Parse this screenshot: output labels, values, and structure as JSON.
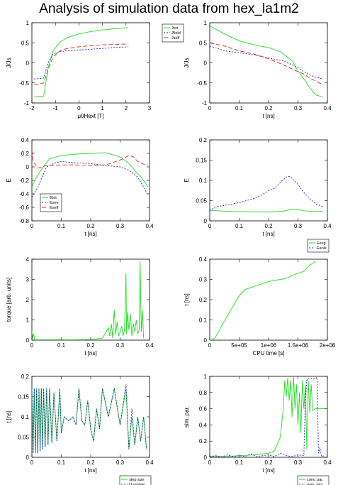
{
  "title": "Analysis of simulation data from hex_la1m2",
  "colors": {
    "green": "#22dd22",
    "blue": "#2222cc",
    "red": "#dd2222",
    "axis": "#000000"
  },
  "chart_data": [
    {
      "id": "p1",
      "type": "line",
      "xlabel": "μ0Hext [T]",
      "ylabel": "J/Js",
      "xlim": [
        -2,
        3
      ],
      "ylim": [
        -1,
        1
      ],
      "xticks": [
        "-2",
        "-1",
        "0",
        "1",
        "2",
        "3"
      ],
      "yticks": [
        "-1",
        "-0.5",
        "0",
        "0.5",
        "1"
      ],
      "legend_position": "outside-top-right",
      "series": [
        {
          "name": "Jtot",
          "color": "#22dd22",
          "dash": "",
          "x": [
            -1.9,
            -1.5,
            -1.3,
            -1.1,
            -0.8,
            -0.5,
            0,
            0.5,
            1,
            1.5,
            2.1
          ],
          "y": [
            -0.85,
            -0.83,
            -0.1,
            0.3,
            0.52,
            0.63,
            0.72,
            0.78,
            0.82,
            0.85,
            0.88
          ]
        },
        {
          "name": "Jfield",
          "color": "#2222cc",
          "dash": "2,2",
          "x": [
            -1.9,
            -1.5,
            -1.3,
            -1.1,
            -0.8,
            -0.5,
            0,
            0.5,
            1,
            1.5,
            2.1
          ],
          "y": [
            -0.4,
            -0.38,
            0.02,
            0.22,
            0.28,
            0.3,
            0.32,
            0.34,
            0.36,
            0.38,
            0.4
          ]
        },
        {
          "name": "Jself",
          "color": "#dd2222",
          "dash": "6,3",
          "x": [
            -1.9,
            -1.5,
            -1.3,
            -1.1,
            -0.8,
            -0.5,
            0,
            0.5,
            1,
            1.5,
            2.1
          ],
          "y": [
            -0.55,
            -0.5,
            -0.15,
            0.15,
            0.3,
            0.36,
            0.4,
            0.43,
            0.45,
            0.46,
            0.47
          ]
        }
      ]
    },
    {
      "id": "p2",
      "type": "line",
      "xlabel": "t [ns]",
      "ylabel": "J/Js",
      "xlim": [
        0,
        0.4
      ],
      "ylim": [
        -1,
        1
      ],
      "xticks": [
        "0",
        "0.1",
        "0.2",
        "0.3",
        "0.4"
      ],
      "yticks": [
        "-1",
        "-0.5",
        "0",
        "0.5",
        "1"
      ],
      "series": [
        {
          "name": "Jtot",
          "color": "#22dd22",
          "dash": "",
          "x": [
            0,
            0.05,
            0.1,
            0.15,
            0.2,
            0.24,
            0.28,
            0.3,
            0.32,
            0.34,
            0.36,
            0.385
          ],
          "y": [
            0.92,
            0.72,
            0.55,
            0.45,
            0.38,
            0.28,
            0.05,
            -0.2,
            -0.4,
            -0.62,
            -0.8,
            -0.85
          ]
        },
        {
          "name": "Jfield",
          "color": "#2222cc",
          "dash": "2,2",
          "x": [
            0,
            0.05,
            0.1,
            0.15,
            0.2,
            0.25,
            0.28,
            0.3,
            0.32,
            0.34,
            0.36,
            0.385
          ],
          "y": [
            0.42,
            0.3,
            0.25,
            0.2,
            0.12,
            0.05,
            -0.05,
            -0.12,
            -0.22,
            -0.3,
            -0.36,
            -0.4
          ]
        },
        {
          "name": "Jself",
          "color": "#dd2222",
          "dash": "6,3",
          "x": [
            0,
            0.05,
            0.1,
            0.15,
            0.2,
            0.25,
            0.28,
            0.3,
            0.32,
            0.34,
            0.36,
            0.385
          ],
          "y": [
            0.5,
            0.42,
            0.3,
            0.22,
            0.1,
            -0.05,
            -0.15,
            -0.22,
            -0.28,
            -0.38,
            -0.45,
            -0.55
          ]
        }
      ]
    },
    {
      "id": "p3",
      "type": "line",
      "xlabel": "t [ns]",
      "ylabel": "E",
      "xlim": [
        0,
        0.4
      ],
      "ylim": [
        -0.8,
        0.4
      ],
      "xticks": [
        "0",
        "0.1",
        "0.2",
        "0.3",
        "0.4"
      ],
      "yticks": [
        "-0.8",
        "-0.6",
        "-0.4",
        "-0.2",
        "0",
        "0.2",
        "0.4"
      ],
      "legend_position": "inside-bottom-left",
      "series": [
        {
          "name": "Etot",
          "color": "#22dd22",
          "dash": "",
          "x": [
            0,
            0.01,
            0.03,
            0.06,
            0.1,
            0.15,
            0.2,
            0.25,
            0.3,
            0.33,
            0.36,
            0.38,
            0.395
          ],
          "y": [
            -0.3,
            -0.2,
            -0.05,
            0.12,
            0.17,
            0.19,
            0.2,
            0.21,
            0.15,
            0.05,
            -0.1,
            -0.2,
            -0.3
          ]
        },
        {
          "name": "Ezee",
          "color": "#2222cc",
          "dash": "2,2",
          "x": [
            0,
            0.02,
            0.05,
            0.08,
            0.1,
            0.15,
            0.2,
            0.25,
            0.3,
            0.33,
            0.36,
            0.38,
            0.395
          ],
          "y": [
            -0.45,
            -0.3,
            0,
            0.06,
            0.08,
            0.06,
            0.05,
            0.02,
            0,
            -0.05,
            -0.15,
            -0.3,
            -0.42
          ]
        },
        {
          "name": "Eself",
          "color": "#dd2222",
          "dash": "6,3",
          "x": [
            0,
            0.005,
            0.02,
            0.05,
            0.1,
            0.15,
            0.2,
            0.25,
            0.3,
            0.33,
            0.345,
            0.36,
            0.38,
            0.395
          ],
          "y": [
            0.25,
            0.08,
            -0.02,
            0.02,
            0.03,
            0.03,
            0.02,
            0.03,
            0.1,
            0.17,
            0.15,
            0.08,
            0.04,
            0.03
          ]
        }
      ]
    },
    {
      "id": "p4",
      "type": "line",
      "xlabel": "t [ns]",
      "ylabel": "E",
      "xlim": [
        0,
        0.4
      ],
      "ylim": [
        0,
        0.2
      ],
      "xticks": [
        "0",
        "0.1",
        "0.2",
        "0.3",
        "0.4"
      ],
      "yticks": [
        "0",
        "0.05",
        "0.1",
        "0.15",
        "0.2"
      ],
      "legend_position": "outside-bottom-right",
      "series": [
        {
          "name": "Eexg",
          "color": "#22dd22",
          "dash": "",
          "x": [
            0,
            0.05,
            0.1,
            0.15,
            0.2,
            0.25,
            0.28,
            0.3,
            0.32,
            0.35,
            0.385
          ],
          "y": [
            0.026,
            0.024,
            0.023,
            0.022,
            0.022,
            0.024,
            0.029,
            0.028,
            0.025,
            0.023,
            0.024
          ]
        },
        {
          "name": "Eanis",
          "color": "#2222cc",
          "dash": "2,2",
          "x": [
            0,
            0.02,
            0.05,
            0.1,
            0.15,
            0.18,
            0.2,
            0.22,
            0.24,
            0.26,
            0.27,
            0.28,
            0.3,
            0.32,
            0.34,
            0.36,
            0.385
          ],
          "y": [
            0.025,
            0.035,
            0.038,
            0.045,
            0.055,
            0.065,
            0.075,
            0.08,
            0.095,
            0.108,
            0.11,
            0.105,
            0.09,
            0.07,
            0.055,
            0.042,
            0.035
          ]
        }
      ]
    },
    {
      "id": "p5",
      "type": "line",
      "xlabel": "t [ns]",
      "ylabel": "torque [arb. units]",
      "xlim": [
        0,
        0.4
      ],
      "ylim": [
        0,
        4
      ],
      "xticks": [
        "0",
        "0.1",
        "0.2",
        "0.3",
        "0.4"
      ],
      "yticks": [
        "0",
        "1",
        "2",
        "3",
        "4"
      ],
      "series": [
        {
          "name": "torque",
          "color": "#22dd22",
          "dash": "",
          "x": [
            0,
            0.003,
            0.006,
            0.01,
            0.05,
            0.1,
            0.15,
            0.2,
            0.24,
            0.26,
            0.265,
            0.27,
            0.275,
            0.28,
            0.285,
            0.29,
            0.295,
            0.3,
            0.305,
            0.31,
            0.315,
            0.32,
            0.322,
            0.325,
            0.33,
            0.335,
            0.34,
            0.345,
            0.35,
            0.355,
            0.36,
            0.365,
            0.368,
            0.372,
            0.376,
            0.38
          ],
          "y": [
            0.45,
            0.1,
            0.3,
            0.02,
            0.02,
            0.02,
            0.02,
            0.03,
            0.1,
            0.6,
            0.2,
            0.8,
            0.1,
            1.5,
            0.3,
            0.9,
            0.2,
            0.4,
            0.7,
            0.2,
            0.5,
            3.3,
            0.3,
            1.4,
            0.5,
            1.3,
            0.2,
            0.8,
            0.4,
            1.0,
            0.3,
            0.5,
            3.9,
            0.4,
            1.5,
            0.1
          ]
        }
      ]
    },
    {
      "id": "p6",
      "type": "line",
      "xlabel": "CPU time [s]",
      "ylabel": "t [ns]",
      "xlim": [
        0,
        2000000
      ],
      "ylim": [
        0,
        0.4
      ],
      "xticks": [
        "0",
        "5e+05",
        "1e+06",
        "1.5e+06",
        "2e+06"
      ],
      "yticks": [
        "0",
        "0.1",
        "0.2",
        "0.3",
        "0.4"
      ],
      "series": [
        {
          "name": "t",
          "color": "#22dd22",
          "dash": "",
          "x": [
            0,
            50000,
            100000,
            200000,
            300000,
            400000,
            500000,
            600000,
            700000,
            800000,
            1000000,
            1200000,
            1300000,
            1400000,
            1500000,
            1600000,
            1700000,
            1800000
          ],
          "y": [
            0,
            0.002,
            0.015,
            0.07,
            0.12,
            0.17,
            0.22,
            0.25,
            0.26,
            0.27,
            0.29,
            0.3,
            0.305,
            0.32,
            0.33,
            0.34,
            0.37,
            0.39
          ]
        }
      ]
    },
    {
      "id": "p7",
      "type": "line",
      "xlabel": "t [ns]",
      "ylabel": "t [ns]",
      "xlim": [
        0,
        0.4
      ],
      "ylim": [
        0,
        0.2
      ],
      "xticks": [
        "0",
        "0.1",
        "0.2",
        "0.3",
        "0.4"
      ],
      "yticks": [
        "0",
        "0.05",
        "0.1",
        "0.15",
        "0.2"
      ],
      "legend_position": "outside-bottom-right",
      "series": [
        {
          "name": "step size",
          "color": "#22dd22",
          "dash": "",
          "x": [
            0,
            0.004,
            0.008,
            0.012,
            0.016,
            0.02,
            0.024,
            0.028,
            0.032,
            0.036,
            0.04,
            0.045,
            0.05,
            0.055,
            0.06,
            0.068,
            0.075,
            0.085,
            0.095,
            0.1,
            0.11,
            0.125,
            0.14,
            0.15,
            0.16,
            0.17,
            0.18,
            0.19,
            0.2,
            0.21,
            0.22,
            0.23,
            0.24,
            0.26,
            0.28,
            0.3,
            0.32,
            0.33,
            0.34,
            0.35,
            0.36,
            0.37,
            0.38,
            0.39
          ],
          "y": [
            0.17,
            0.01,
            0.17,
            0.01,
            0.17,
            0.01,
            0.17,
            0.015,
            0.17,
            0.02,
            0.17,
            0.025,
            0.17,
            0.03,
            0.17,
            0.035,
            0.16,
            0.04,
            0.17,
            0.06,
            0.1,
            0.09,
            0.1,
            0.08,
            0.17,
            0.09,
            0.08,
            0.14,
            0.07,
            0.04,
            0.12,
            0.07,
            0.17,
            0.1,
            0.17,
            0.08,
            0.17,
            0.02,
            0.1,
            0.03,
            0.1,
            0.04,
            0.1,
            0.02
          ]
        },
        {
          "name": "U update",
          "color": "#2222cc",
          "dash": "2,2",
          "x": [
            0,
            0.004,
            0.008,
            0.012,
            0.016,
            0.02,
            0.024,
            0.028,
            0.032,
            0.036,
            0.04,
            0.045,
            0.05,
            0.055,
            0.06,
            0.068,
            0.075,
            0.085,
            0.095,
            0.1,
            0.11,
            0.125,
            0.14,
            0.15,
            0.16,
            0.17,
            0.18,
            0.19,
            0.2,
            0.21,
            0.22,
            0.23,
            0.24,
            0.26,
            0.28,
            0.3,
            0.32,
            0.33,
            0.34,
            0.35,
            0.36,
            0.37,
            0.38,
            0.39
          ],
          "y": [
            0.17,
            0.01,
            0.17,
            0.01,
            0.17,
            0.01,
            0.17,
            0.015,
            0.17,
            0.02,
            0.17,
            0.025,
            0.17,
            0.03,
            0.17,
            0.035,
            0.16,
            0.04,
            0.17,
            0.06,
            0.1,
            0.09,
            0.1,
            0.08,
            0.17,
            0.09,
            0.08,
            0.14,
            0.07,
            0.04,
            0.12,
            0.07,
            0.17,
            0.1,
            0.17,
            0.08,
            0.18,
            0.02,
            0.12,
            0.03,
            0.1,
            0.04,
            0.1,
            0.02
          ]
        }
      ]
    },
    {
      "id": "p8",
      "type": "line",
      "xlabel": "t [ns]",
      "ylabel": "sim. par.",
      "xlim": [
        0,
        0.4
      ],
      "ylim": [
        0,
        1
      ],
      "xticks": [
        "0",
        "0.1",
        "0.2",
        "0.3",
        "0.4"
      ],
      "yticks": [
        "0",
        "0.2",
        "0.4",
        "0.6",
        "0.8",
        "1"
      ],
      "legend_position": "outside-bottom-right",
      "series": [
        {
          "name": "conv. par.",
          "color": "#22dd22",
          "dash": "",
          "x": [
            0,
            0.05,
            0.1,
            0.15,
            0.2,
            0.22,
            0.24,
            0.25,
            0.255,
            0.26,
            0.265,
            0.27,
            0.275,
            0.28,
            0.285,
            0.29,
            0.295,
            0.3,
            0.305,
            0.31,
            0.315,
            0.32,
            0.325,
            0.33,
            0.335,
            0.34,
            0.345,
            0.35,
            0.36,
            0.37,
            0.38,
            0.39
          ],
          "y": [
            0.01,
            0.01,
            0.02,
            0.03,
            0.05,
            0.08,
            0.25,
            0.6,
            0.95,
            0.75,
            0.98,
            0.7,
            0.95,
            0.5,
            1.0,
            0.6,
            0.9,
            0.4,
            0.8,
            0.3,
            0.95,
            0.6,
            0.9,
            0.1,
            0.95,
            0.55,
            0.9,
            0.58,
            0.6,
            0.6,
            0.6,
            0.6
          ]
        },
        {
          "name": "max. dev.",
          "color": "#2222cc",
          "dash": "2,2",
          "x": [
            0,
            0.02,
            0.04,
            0.06,
            0.08,
            0.1,
            0.12,
            0.14,
            0.16,
            0.18,
            0.2,
            0.22,
            0.24,
            0.26,
            0.28,
            0.3,
            0.32,
            0.325,
            0.33,
            0.335,
            0.34,
            0.35,
            0.36,
            0.365,
            0.37,
            0.375,
            0.38,
            0.39
          ],
          "y": [
            0.01,
            0.02,
            0.005,
            0.03,
            0.01,
            0.02,
            0.01,
            0.04,
            0.01,
            0.02,
            0.03,
            0.01,
            0.05,
            0.02,
            0.01,
            0.03,
            0.02,
            0.7,
            0.95,
            0.98,
            0.97,
            0.98,
            0.97,
            0.99,
            0.05,
            0.12,
            0.01,
            0.02
          ]
        }
      ]
    }
  ]
}
